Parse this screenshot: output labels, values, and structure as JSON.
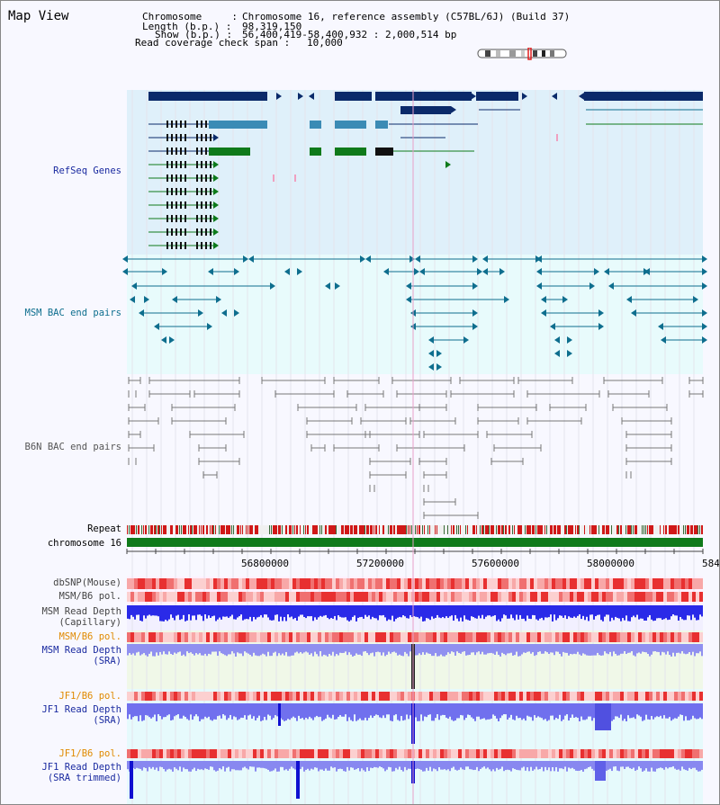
{
  "header": {
    "title": "Map View",
    "chromosome_key": "Chromosome     :",
    "chromosome_val": "Chromosome 16, reference assembly (C57BL/6J) (Build 37)",
    "length_key": "Length (b.p.) :",
    "length_val": "98,319,150",
    "show_key": "Show (b.p.) :",
    "show_val": "56,400,419-58,400,932 : 2,000,514 bp",
    "coverage_key": "Read coverage check span :",
    "coverage_val": "10,000"
  },
  "tracks": {
    "refseq": "RefSeq Genes",
    "msm_bac": "MSM BAC end pairs",
    "b6n_bac": "B6N BAC end pairs",
    "repeat": "Repeat",
    "chromosome": "chromosome 16",
    "dbsnp": "dbSNP(Mouse)",
    "msm_b6_pol": "MSM/B6 pol.",
    "msm_depth_cap_1": "MSM Read Depth",
    "msm_depth_cap_2": "(Capillary)",
    "msm_b6_pol_2": "MSM/B6 pol.",
    "msm_depth_sra_1": "MSM Read Depth",
    "msm_depth_sra_2": "(SRA)",
    "jf1_b6_pol": "JF1/B6 pol.",
    "jf1_depth_sra_1": "JF1 Read Depth",
    "jf1_depth_sra_2": "(SRA)",
    "jf1_b6_pol_2": "JF1/B6 pol.",
    "jf1_depth_trim_1": "JF1 Read Depth",
    "jf1_depth_trim_2": "(SRA trimmed)"
  },
  "axis": {
    "ticks": [
      "56800000",
      "57200000",
      "57600000",
      "58000000",
      "584"
    ]
  },
  "colors": {
    "refseq_bg": "#dff0fa",
    "bac_bg": "#e8fbfc",
    "gene_dark": "#0b2a6a",
    "gene_mid": "#3b8bb5",
    "gene_green": "#0f7a1a",
    "msm_line": "#0e6e8e",
    "b6n_line": "#777777",
    "label_blue": "#1a2aa0",
    "label_teal": "#0e6e8e",
    "label_orange": "#e08a00",
    "depth_blue": "#2020e0",
    "depth_light": "#8080f0"
  }
}
